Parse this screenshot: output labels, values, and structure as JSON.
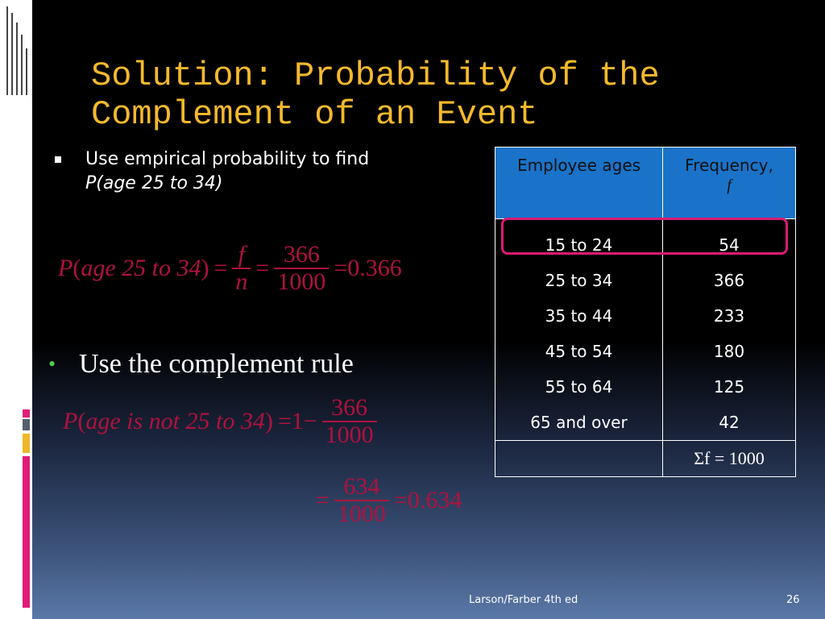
{
  "title": "Solution: Probability of the Complement of an Event",
  "bullet1": {
    "line1": "Use empirical probability to find",
    "line2": "P(age 25 to 34)"
  },
  "formula1": {
    "lhs_P": "P",
    "lhs_inner": "age 25 to 34",
    "frac1_num": "f",
    "frac1_den": "n",
    "frac2_num": "366",
    "frac2_den": "1000",
    "result": "0.366"
  },
  "bullet2": {
    "text": "Use the complement rule"
  },
  "formula2": {
    "lhs_P": "P",
    "lhs_inner": "age is not 25 to 34",
    "one": "1",
    "frac_num": "366",
    "frac_den": "1000"
  },
  "formula3": {
    "frac_num": "634",
    "frac_den": "1000",
    "result": "0.634"
  },
  "table": {
    "header_ages": "Employee ages",
    "header_freq_line1": "Frequency,",
    "header_freq_line2": "f",
    "ages": [
      "15 to 24",
      "25 to 34",
      "35 to 44",
      "45 to 54",
      "55 to 64",
      "65 and over"
    ],
    "freqs": [
      "54",
      "366",
      "233",
      "180",
      "125",
      "42"
    ],
    "sum": "Σf = 1000"
  },
  "footer": {
    "source": "Larson/Farber 4th ed",
    "page": "26"
  },
  "colors": {
    "title": "#f5b92c",
    "formula": "#b0123e",
    "header_bg": "#1a73c9",
    "highlight": "#d81b74"
  }
}
